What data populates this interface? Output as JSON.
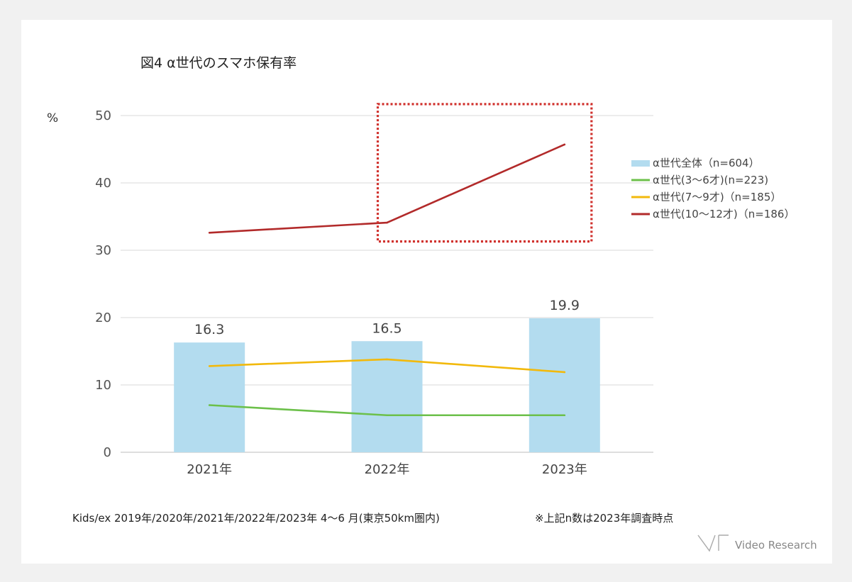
{
  "title": "図4 α世代のスマホ保有率",
  "unit_label": "%",
  "footnote": "Kids/ex 2019年/2020年/2021年/2022年/2023年 4～6 月(東京50km圏内)",
  "footnote_note": "※上記n数は2023年調査時点",
  "brand": "Video Research",
  "chart_data": {
    "type": "bar",
    "categories": [
      "2021年",
      "2022年",
      "2023年"
    ],
    "ylim": [
      0,
      50
    ],
    "yticks": [
      0,
      10,
      20,
      30,
      40,
      50
    ],
    "grid": true,
    "legend_position": "right",
    "series": [
      {
        "name": "α世代全体（n=604）",
        "type": "bar",
        "color": "#b3dcef",
        "values": [
          16.3,
          16.5,
          19.9
        ],
        "labels": [
          "16.3",
          "16.5",
          "19.9"
        ]
      },
      {
        "name": "α世代(3～6才)(n=223)",
        "type": "line",
        "color": "#6cc04a",
        "values": [
          7.0,
          5.5,
          5.5
        ]
      },
      {
        "name": "α世代(7～9才)（n=185）",
        "type": "line",
        "color": "#f2b90c",
        "values": [
          12.8,
          13.8,
          11.9
        ]
      },
      {
        "name": "α世代(10～12才)（n=186）",
        "type": "line",
        "color": "#b22a2a",
        "values": [
          32.6,
          34.1,
          45.7
        ]
      }
    ],
    "annotation": {
      "type": "dotted-box",
      "color": "#d0312d",
      "x_span": [
        "2022年",
        "2023年"
      ],
      "y_span": [
        31.3,
        51.7
      ]
    }
  }
}
